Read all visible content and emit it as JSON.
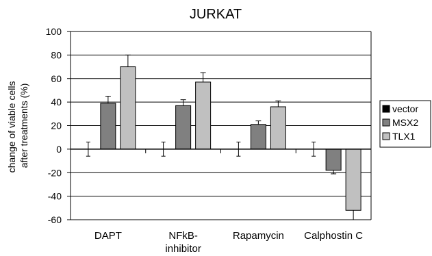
{
  "chart_data": {
    "type": "bar",
    "title": "JURKAT",
    "ylabel_lines": [
      "change of viable cells",
      "after treatments (%)"
    ],
    "xlabel": "",
    "ylim": [
      -60,
      100
    ],
    "yticks": [
      -60,
      -40,
      -20,
      0,
      20,
      40,
      60,
      80,
      100
    ],
    "grid": true,
    "legend_position": "right",
    "categories": [
      {
        "lines": [
          "DAPT"
        ]
      },
      {
        "lines": [
          "NFkB-",
          "inhibitor"
        ]
      },
      {
        "lines": [
          "Rapamycin"
        ]
      },
      {
        "lines": [
          "Calphostin C"
        ]
      }
    ],
    "series": [
      {
        "name": "vector",
        "color": "#000000",
        "values": [
          0,
          0,
          0,
          0
        ],
        "errors": [
          6,
          6,
          6,
          6
        ]
      },
      {
        "name": "MSX2",
        "color": "#808080",
        "values": [
          39,
          37,
          21,
          -18
        ],
        "errors": [
          6,
          5,
          3,
          3
        ]
      },
      {
        "name": "TLX1",
        "color": "#c0c0c0",
        "values": [
          70,
          57,
          36,
          -52
        ],
        "errors": [
          10,
          8,
          5,
          8
        ]
      }
    ]
  }
}
